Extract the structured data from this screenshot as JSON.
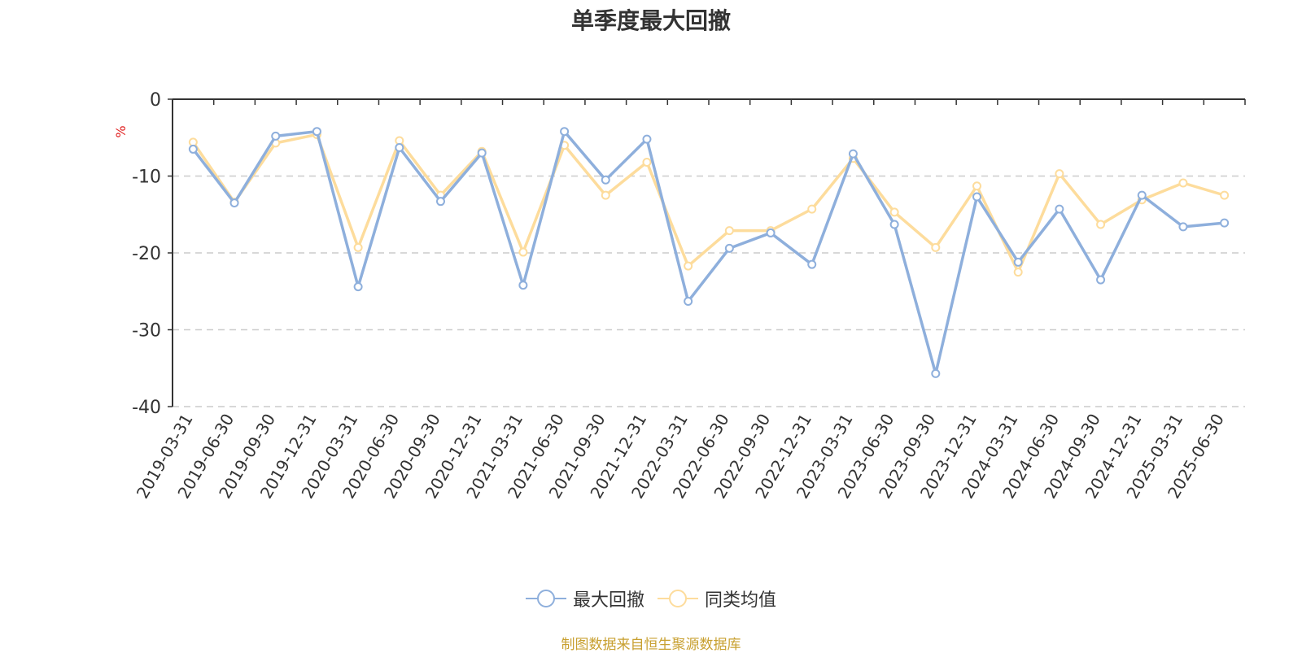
{
  "chart_data": {
    "type": "line",
    "title": "单季度最大回撤",
    "ylabel": "%",
    "xlabel": "",
    "ylim": [
      -40,
      0
    ],
    "yticks": [
      0,
      -10,
      -20,
      -30,
      -40
    ],
    "grid": true,
    "legend_position": "bottom",
    "categories": [
      "2019-03-31",
      "2019-06-30",
      "2019-09-30",
      "2019-12-31",
      "2020-03-31",
      "2020-06-30",
      "2020-09-30",
      "2020-12-31",
      "2021-03-31",
      "2021-06-30",
      "2021-09-30",
      "2021-12-31",
      "2022-03-31",
      "2022-06-30",
      "2022-09-30",
      "2022-12-31",
      "2023-03-31",
      "2023-06-30",
      "2023-09-30",
      "2023-12-31",
      "2024-03-31",
      "2024-06-30",
      "2024-09-30",
      "2024-12-31",
      "2025-03-31",
      "2025-06-30"
    ],
    "series": [
      {
        "name": "最大回撤",
        "color": "#8eafdc",
        "values": [
          -6.5,
          -13.5,
          -4.8,
          -4.2,
          -24.4,
          -6.3,
          -13.3,
          -7.0,
          -24.2,
          -4.2,
          -10.5,
          -5.2,
          -26.3,
          -19.4,
          -17.4,
          -21.5,
          -7.1,
          -16.3,
          -35.7,
          -12.7,
          -21.2,
          -14.3,
          -23.5,
          -12.5,
          -16.6,
          -16.1
        ]
      },
      {
        "name": "同类均值",
        "color": "#fddc9c",
        "values": [
          -5.6,
          -13.4,
          -5.7,
          -4.6,
          -19.3,
          -5.4,
          -12.5,
          -6.8,
          -19.9,
          -6.0,
          -12.5,
          -8.2,
          -21.7,
          -17.1,
          -17.1,
          -14.3,
          -7.7,
          -14.7,
          -19.3,
          -11.3,
          -22.5,
          -9.7,
          -16.3,
          -13.1,
          -10.9,
          -12.5
        ]
      }
    ]
  },
  "footer": {
    "source": "制图数据来自恒生聚源数据库"
  }
}
